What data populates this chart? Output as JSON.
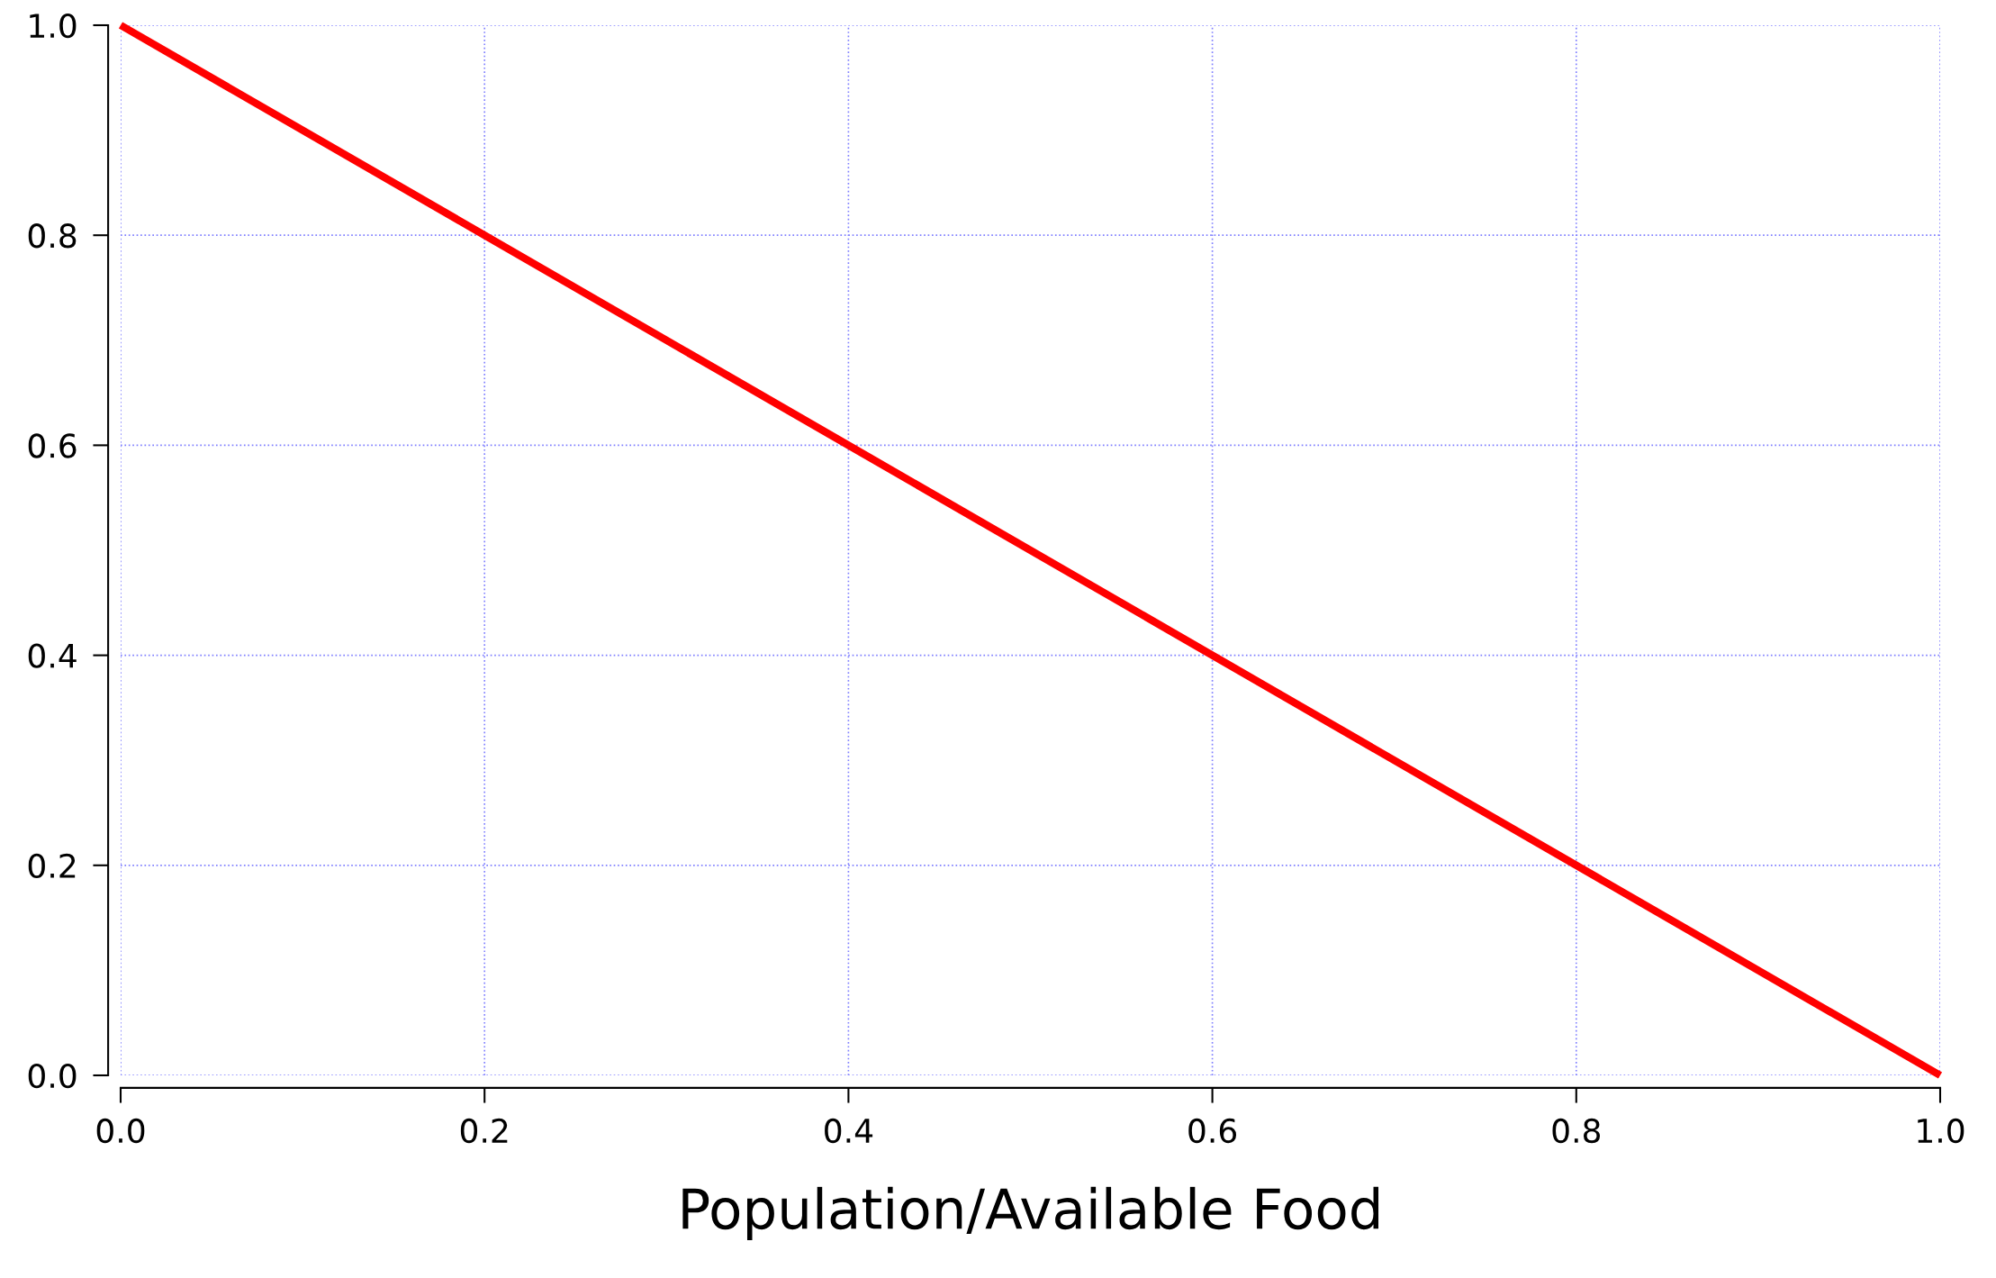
{
  "chart_data": {
    "type": "line",
    "xlabel": "Population/Available Food",
    "x": [
      0.0,
      1.0
    ],
    "series": [
      {
        "color": "#ff0000",
        "values": [
          1.0,
          0.0
        ]
      }
    ],
    "xlim": [
      0.0,
      1.0
    ],
    "ylim": [
      0.0,
      1.0
    ],
    "xticks": [
      {
        "value": 0,
        "label": "0.0"
      },
      0.2,
      0.4,
      0.6,
      0.8,
      {
        "value": 1,
        "label": "1.0"
      }
    ],
    "yticks": [
      {
        "value": 0,
        "label": "0.0"
      },
      0.2,
      0.4,
      0.6,
      0.8,
      {
        "value": 1,
        "label": "1.0"
      }
    ],
    "grid": true,
    "marker": "none",
    "line_style": "solid"
  }
}
